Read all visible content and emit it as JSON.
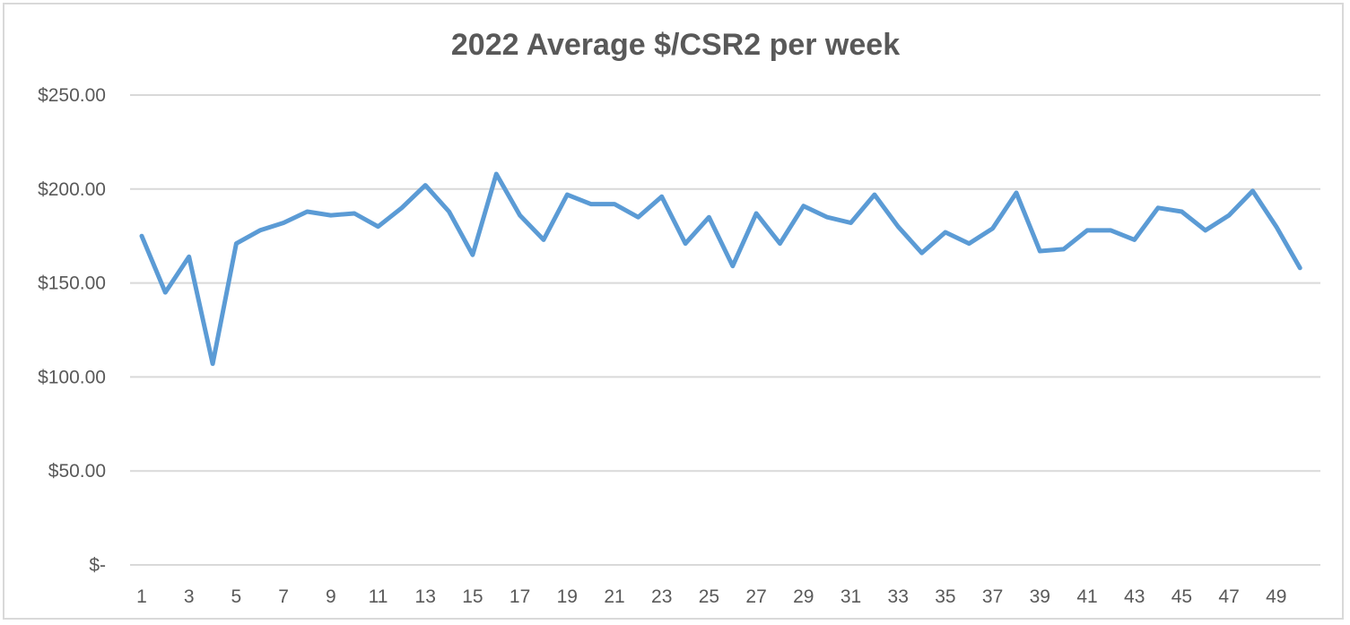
{
  "chart_data": {
    "type": "line",
    "title": "2022 Average $/CSR2 per week",
    "xlabel": "",
    "ylabel": "",
    "x": [
      1,
      2,
      3,
      4,
      5,
      6,
      7,
      8,
      9,
      10,
      11,
      12,
      13,
      14,
      15,
      16,
      17,
      18,
      19,
      20,
      21,
      22,
      23,
      24,
      25,
      26,
      27,
      28,
      29,
      30,
      31,
      32,
      33,
      34,
      35,
      36,
      37,
      38,
      39,
      40,
      41,
      42,
      43,
      44,
      45,
      46,
      47,
      48,
      49,
      50
    ],
    "x_tick_labels": [
      "1",
      "3",
      "5",
      "7",
      "9",
      "11",
      "13",
      "15",
      "17",
      "19",
      "21",
      "23",
      "25",
      "27",
      "29",
      "31",
      "33",
      "35",
      "37",
      "39",
      "41",
      "43",
      "45",
      "47",
      "49"
    ],
    "y_tick_labels": [
      "$-",
      "$50.00",
      "$100.00",
      "$150.00",
      "$200.00",
      "$250.00"
    ],
    "y_ticks": [
      0,
      50,
      100,
      150,
      200,
      250
    ],
    "ylim": [
      0,
      250
    ],
    "grid": true,
    "legend": "none",
    "series": [
      {
        "color": "#5b9bd5",
        "values": [
          175,
          145,
          164,
          107,
          171,
          178,
          182,
          188,
          186,
          187,
          180,
          190,
          202,
          188,
          165,
          208,
          186,
          173,
          197,
          192,
          192,
          185,
          196,
          171,
          185,
          159,
          187,
          171,
          191,
          185,
          182,
          197,
          180,
          166,
          177,
          171,
          179,
          198,
          167,
          168,
          178,
          178,
          173,
          190,
          188,
          178,
          186,
          199,
          180,
          158
        ]
      }
    ]
  }
}
